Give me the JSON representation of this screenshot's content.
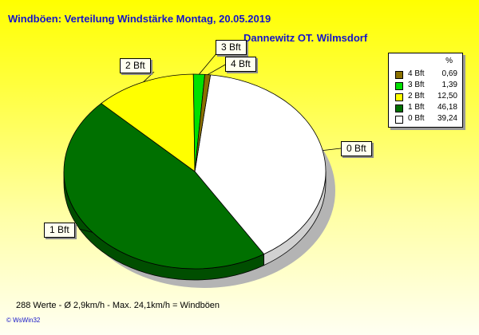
{
  "chart_data": {
    "type": "pie",
    "title": "Windböen: Verteilung Windstärke  Montag, 20.05.2019",
    "subtitle": "Dannewitz OT. Wilmsdorf",
    "slices": [
      {
        "label": "0 Bft",
        "value": 39.24,
        "color": "#ffffff"
      },
      {
        "label": "1 Bft",
        "value": 46.18,
        "color": "#007000"
      },
      {
        "label": "2 Bft",
        "value": 12.5,
        "color": "#ffff00"
      },
      {
        "label": "3 Bft",
        "value": 1.39,
        "color": "#00e000"
      },
      {
        "label": "4 Bft",
        "value": 0.69,
        "color": "#8a7000"
      }
    ],
    "legend": {
      "header": "%",
      "position": "right",
      "entries": [
        {
          "label": "4 Bft",
          "value": "0,69",
          "color": "#8a7000"
        },
        {
          "label": "3 Bft",
          "value": "1,39",
          "color": "#00e000"
        },
        {
          "label": "2 Bft",
          "value": "12,50",
          "color": "#ffff00"
        },
        {
          "label": "1 Bft",
          "value": "46,18",
          "color": "#007000"
        },
        {
          "label": "0 Bft",
          "value": "39,24",
          "color": "#ffffff"
        }
      ]
    }
  },
  "footer": "288 Werte   -   Ø 2,9km/h   -   Max. 24,1km/h = Windböen",
  "copyright": "© WsWin32"
}
